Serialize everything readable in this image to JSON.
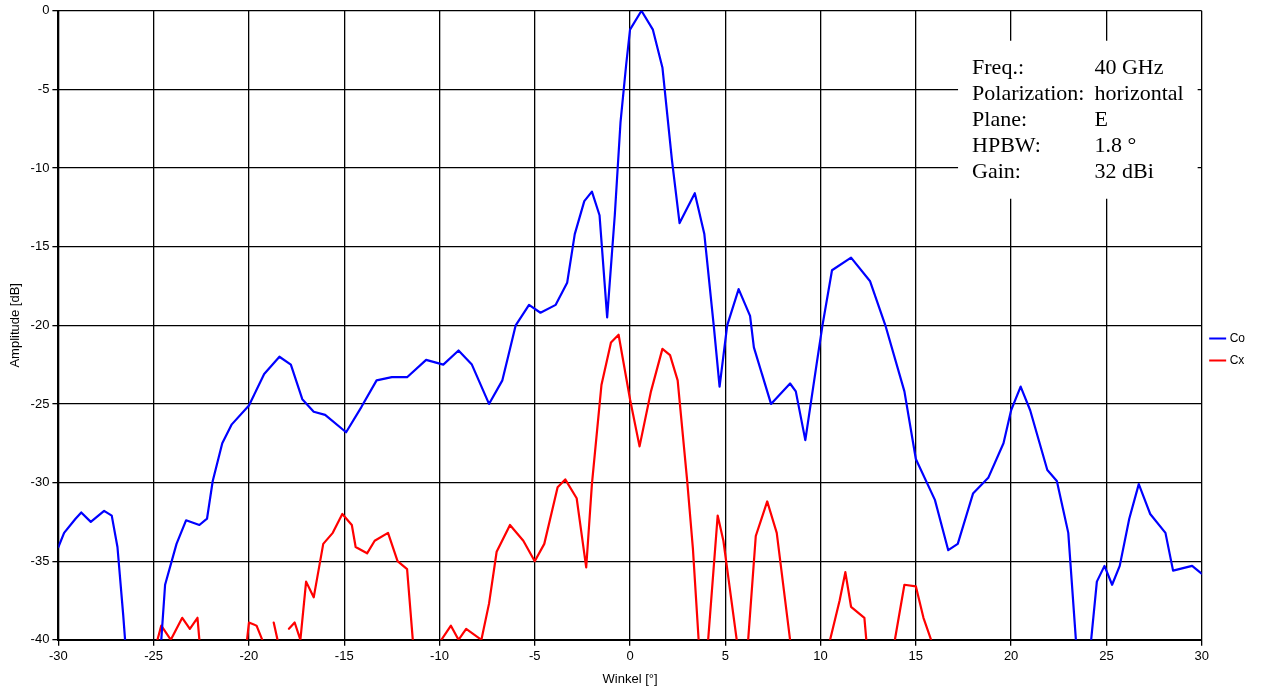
{
  "chart_data": {
    "type": "line",
    "xlabel": "Winkel [°]",
    "ylabel": "Amplitude [dB]",
    "xlim": [
      -30,
      30
    ],
    "xticks": [
      -30,
      -25,
      -20,
      -15,
      -10,
      -5,
      0,
      5,
      10,
      15,
      20,
      25,
      30
    ],
    "ylim": [
      -40,
      0
    ],
    "yticks": [
      -40,
      -35,
      -30,
      -25,
      -20,
      -15,
      -10,
      -5,
      0
    ],
    "grid": true,
    "legend": "right",
    "marker": "none",
    "line_style": "solid",
    "annotations": [
      "Freq.:",
      "40 GHz",
      "Polarization:",
      "horizontal",
      "Plane:",
      "E",
      "HPBW:",
      "1.8 °",
      "Gain:",
      "32 dBi"
    ],
    "series": [
      {
        "name": "Co",
        "color": "#0000ff",
        "x": [
          -30,
          -29.7,
          -29.1,
          -28.8,
          -28.3,
          -27.6,
          -27.2,
          -26.9,
          -26.6,
          -26.5,
          -25.5,
          -24.6,
          -24.4,
          -23.8,
          -23.3,
          -22.6,
          -22.2,
          -21.9,
          -21.4,
          -20.9,
          -20,
          -19.2,
          -18.4,
          -17.8,
          -17.2,
          -16.6,
          -16,
          -14.9,
          -14.1,
          -13.3,
          -12.5,
          -11.7,
          -10.7,
          -9.8,
          -9,
          -8.3,
          -7.4,
          -6.7,
          -6,
          -5.3,
          -4.7,
          -3.9,
          -3.3,
          -2.9,
          -2.4,
          -2,
          -1.6,
          -1.2,
          -0.8,
          -0.5,
          -0.2,
          0,
          0.6,
          1.2,
          1.7,
          2.2,
          2.6,
          3.4,
          3.9,
          4.4,
          4.7,
          5.1,
          5.7,
          6.3,
          6.5,
          7.4,
          8.4,
          8.7,
          9.2,
          9.8,
          10.1,
          10.6,
          11.6,
          12.6,
          13.4,
          14.4,
          15,
          16,
          16.7,
          17.2,
          18,
          18.8,
          19.6,
          20,
          20.5,
          21,
          21.9,
          22.4,
          23,
          23.4,
          23.8,
          24.2,
          24.5,
          24.9,
          25.3,
          25.7,
          26.2,
          26.7,
          27.3,
          28.1,
          28.5,
          29.5,
          30
        ],
        "values": [
          -34.1,
          -33.2,
          -32.3,
          -31.9,
          -32.5,
          -31.8,
          -32.1,
          -34.1,
          -38.4,
          -40,
          null,
          -40,
          -36.5,
          -33.9,
          -32.4,
          -32.7,
          -32.3,
          -29.9,
          -27.5,
          -26.3,
          -25.1,
          -23.1,
          -22,
          -22.5,
          -24.7,
          -25.5,
          -25.7,
          -26.8,
          -25.2,
          -23.5,
          -23.3,
          -23.3,
          -22.2,
          -22.5,
          -21.6,
          -22.5,
          -25,
          -23.5,
          -20,
          -18.7,
          -19.2,
          -18.7,
          -17.3,
          -14.2,
          -12.1,
          -11.5,
          -13,
          -19.5,
          -13,
          -7.1,
          -3.4,
          -1.2,
          0,
          -1.2,
          -3.6,
          -9.5,
          -13.5,
          -11.6,
          -14.2,
          -20.1,
          -23.9,
          -20,
          -17.7,
          -19.4,
          -21.4,
          -25,
          -23.7,
          -24.2,
          -27.3,
          -22.4,
          -20,
          -16.5,
          -15.7,
          -17.2,
          -20,
          -24.2,
          -28.5,
          -31.1,
          -34.3,
          -33.9,
          -30.7,
          -29.7,
          -27.5,
          -25.4,
          -23.9,
          -25.4,
          -29.2,
          -29.9,
          -33.2,
          -40,
          null,
          -40,
          -36.3,
          -35.3,
          -36.5,
          -35.3,
          -32.3,
          -30.1,
          -32,
          -33.2,
          -35.6,
          -35.3,
          -35.8
        ]
      },
      {
        "name": "Cx",
        "color": "#ff0000",
        "x": [
          -24.8,
          -24.6,
          -24.1,
          -23.5,
          -23.1,
          -22.7,
          -22.6,
          -21.3,
          -20.1,
          -20,
          -19.6,
          -19.3,
          -19,
          -18.7,
          -18.5,
          -18.2,
          -17.9,
          -17.6,
          -17.3,
          -17,
          -16.6,
          -16.1,
          -15.6,
          -15.1,
          -14.6,
          -14.4,
          -13.8,
          -13.4,
          -12.7,
          -12.2,
          -11.7,
          -11.4,
          -10.6,
          -9.9,
          -9.4,
          -9,
          -8.6,
          -7.8,
          -7.4,
          -7,
          -6.3,
          -5.6,
          -5,
          -4.5,
          -3.8,
          -3.4,
          -2.8,
          -2.3,
          -2,
          -1.5,
          -1,
          -0.6,
          0,
          0.5,
          1.1,
          1.7,
          2.1,
          2.5,
          3,
          3.3,
          3.6,
          3.85,
          4.1,
          4.6,
          4.9,
          5.6,
          5.9,
          6.2,
          6.6,
          7.2,
          7.7,
          8.4,
          9.5,
          10.5,
          11,
          11.3,
          11.6,
          12.3,
          12.4,
          13.2,
          13.9,
          14.4,
          15,
          15.4,
          15.8
        ],
        "values": [
          -40,
          -39.1,
          -40,
          -38.6,
          -39.3,
          -38.6,
          -40,
          null,
          -40,
          -38.9,
          -39.1,
          -40,
          null,
          -38.9,
          -40,
          null,
          -39.3,
          -38.9,
          -40,
          -36.3,
          -37.3,
          -33.9,
          -33.2,
          -32,
          -32.7,
          -34.1,
          -34.5,
          -33.7,
          -33.2,
          -35,
          -35.5,
          -40,
          null,
          -40,
          -39.1,
          -40,
          -39.3,
          -40,
          -37.7,
          -34.4,
          -32.7,
          -33.7,
          -35,
          -33.9,
          -30.3,
          -29.8,
          -31,
          -35.4,
          -30.1,
          -23.8,
          -21.1,
          -20.6,
          -24.7,
          -27.7,
          -24.2,
          -21.5,
          -21.9,
          -23.5,
          -29.9,
          -34.2,
          -40,
          null,
          -40,
          -32.1,
          -33.7,
          -40,
          null,
          -40,
          -33.4,
          -31.2,
          -33.2,
          -40,
          null,
          -40,
          -37.5,
          -35.7,
          -37.9,
          -38.6,
          -40,
          null,
          -40,
          -36.5,
          -36.6,
          -38.6,
          -40
        ]
      }
    ]
  }
}
